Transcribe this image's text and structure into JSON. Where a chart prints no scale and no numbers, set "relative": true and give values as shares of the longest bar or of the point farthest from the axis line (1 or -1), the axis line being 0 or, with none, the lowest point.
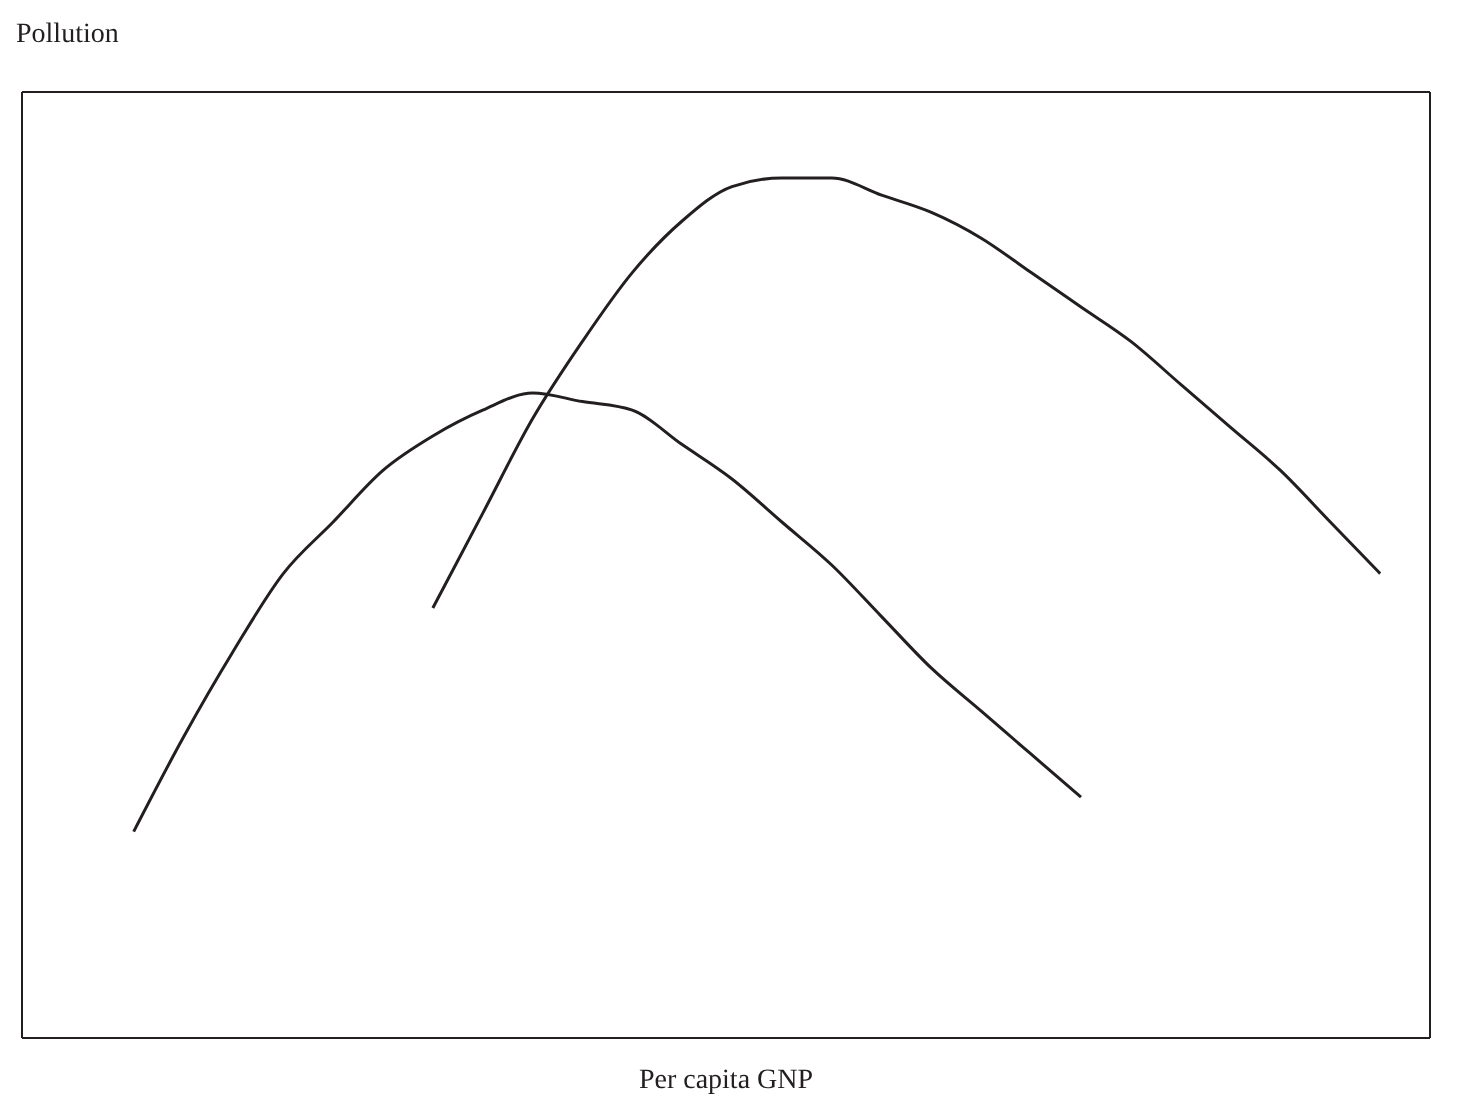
{
  "chart_data": {
    "type": "line",
    "relative": true,
    "ylabel": "Pollution",
    "xlabel": "Per capita GNP",
    "categories": [
      null,
      null,
      null,
      null,
      null,
      null,
      null,
      null,
      null,
      null,
      null,
      null,
      null,
      null,
      null,
      null,
      null,
      null,
      null,
      null,
      null,
      null,
      null,
      null,
      null,
      null
    ],
    "series": [
      {
        "color": "#231f20",
        "values": [
          0.24,
          0.35,
          0.45,
          0.54,
          0.6,
          0.66,
          0.7,
          0.73,
          0.75,
          0.74,
          0.73,
          0.69,
          0.65,
          0.6,
          0.55,
          0.49,
          0.43,
          0.38,
          0.33,
          0.28,
          null,
          null,
          null,
          null,
          null,
          null
        ]
      },
      {
        "color": "#231f20",
        "values": [
          null,
          null,
          null,
          null,
          null,
          null,
          0.5,
          0.61,
          0.72,
          0.81,
          0.89,
          0.95,
          0.99,
          1.0,
          1.0,
          0.98,
          0.96,
          0.93,
          0.89,
          0.85,
          0.81,
          0.76,
          0.71,
          0.66,
          0.6,
          0.54
        ]
      }
    ],
    "grid": false,
    "marker": "none",
    "line_style": "solid"
  }
}
